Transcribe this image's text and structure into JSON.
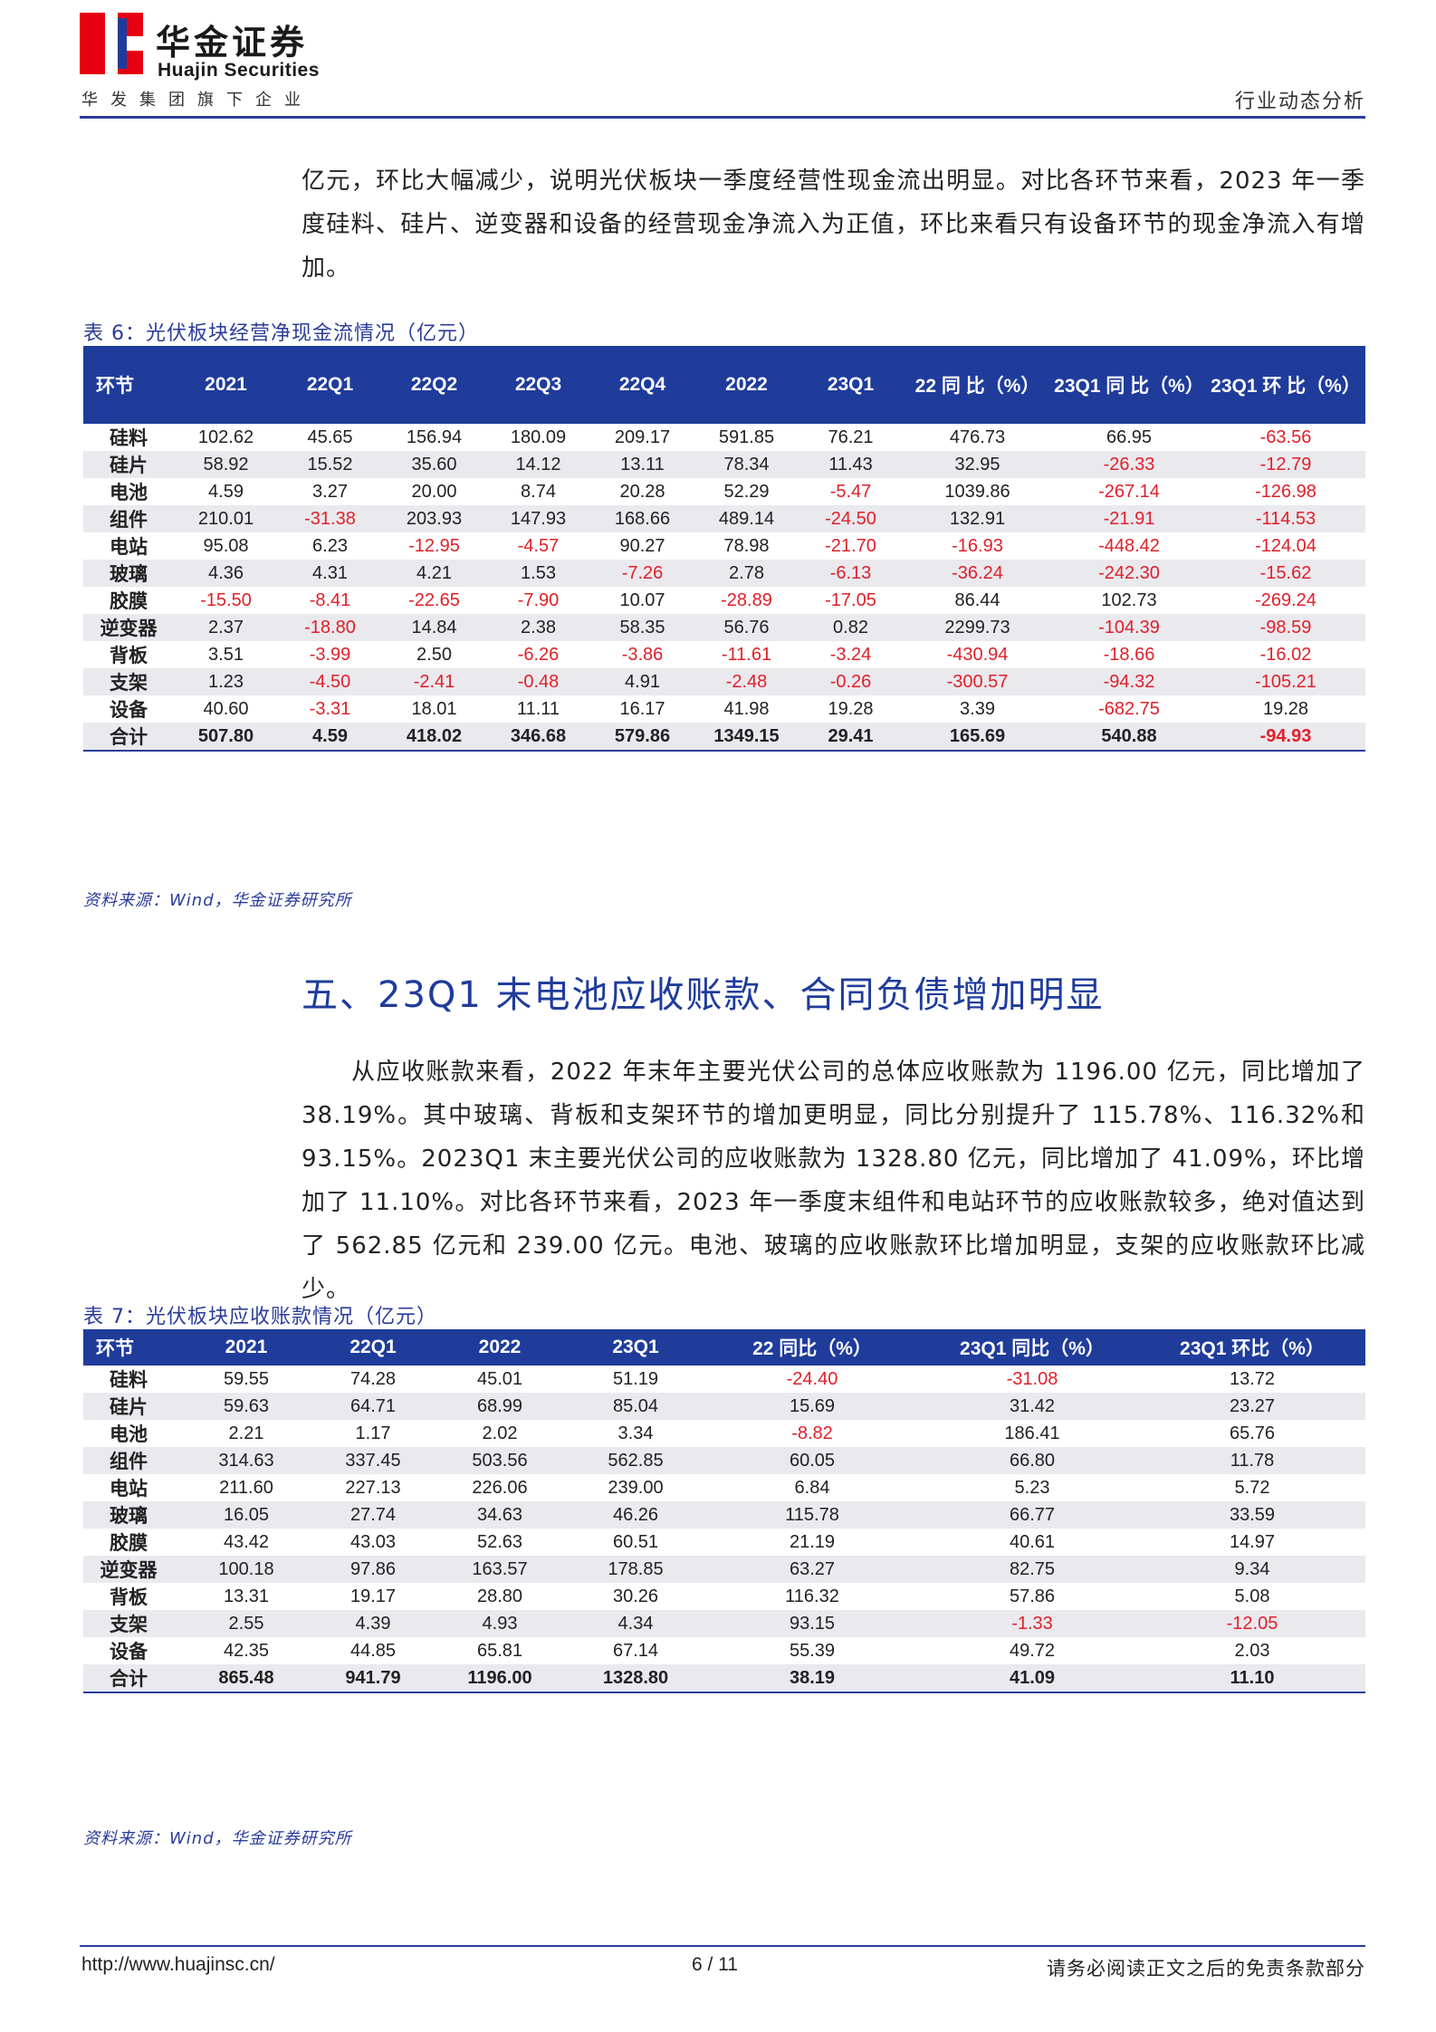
{
  "header": {
    "brand_cn": "华金证券",
    "brand_en": "Huajin Securities",
    "tagline": "华发集团旗下企业",
    "category": "行业动态分析",
    "brand_colors": {
      "red": "#e60012",
      "blue": "#1f3c9b"
    }
  },
  "intro_paragraph": "亿元，环比大幅减少，说明光伏板块一季度经营性现金流出明显。对比各环节来看，2023 年一季度硅料、硅片、逆变器和设备的经营现金净流入为正值，环比来看只有设备环节的现金净流入有增加。",
  "table6": {
    "title": "表 6：光伏板块经营净现金流情况（亿元）",
    "headers": [
      "环节",
      "2021",
      "22Q1",
      "22Q2",
      "22Q3",
      "22Q4",
      "2022",
      "23Q1",
      "22 同 比（%）",
      "23Q1 同 比（%）",
      "23Q1 环 比（%）"
    ],
    "rows": [
      [
        "硅料",
        "102.62",
        "45.65",
        "156.94",
        "180.09",
        "209.17",
        "591.85",
        "76.21",
        "476.73",
        "66.95",
        "-63.56"
      ],
      [
        "硅片",
        "58.92",
        "15.52",
        "35.60",
        "14.12",
        "13.11",
        "78.34",
        "11.43",
        "32.95",
        "-26.33",
        "-12.79"
      ],
      [
        "电池",
        "4.59",
        "3.27",
        "20.00",
        "8.74",
        "20.28",
        "52.29",
        "-5.47",
        "1039.86",
        "-267.14",
        "-126.98"
      ],
      [
        "组件",
        "210.01",
        "-31.38",
        "203.93",
        "147.93",
        "168.66",
        "489.14",
        "-24.50",
        "132.91",
        "-21.91",
        "-114.53"
      ],
      [
        "电站",
        "95.08",
        "6.23",
        "-12.95",
        "-4.57",
        "90.27",
        "78.98",
        "-21.70",
        "-16.93",
        "-448.42",
        "-124.04"
      ],
      [
        "玻璃",
        "4.36",
        "4.31",
        "4.21",
        "1.53",
        "-7.26",
        "2.78",
        "-6.13",
        "-36.24",
        "-242.30",
        "-15.62"
      ],
      [
        "胶膜",
        "-15.50",
        "-8.41",
        "-22.65",
        "-7.90",
        "10.07",
        "-28.89",
        "-17.05",
        "86.44",
        "102.73",
        "-269.24"
      ],
      [
        "逆变器",
        "2.37",
        "-18.80",
        "14.84",
        "2.38",
        "58.35",
        "56.76",
        "0.82",
        "2299.73",
        "-104.39",
        "-98.59"
      ],
      [
        "背板",
        "3.51",
        "-3.99",
        "2.50",
        "-6.26",
        "-3.86",
        "-11.61",
        "-3.24",
        "-430.94",
        "-18.66",
        "-16.02"
      ],
      [
        "支架",
        "1.23",
        "-4.50",
        "-2.41",
        "-0.48",
        "4.91",
        "-2.48",
        "-0.26",
        "-300.57",
        "-94.32",
        "-105.21"
      ],
      [
        "设备",
        "40.60",
        "-3.31",
        "18.01",
        "11.11",
        "16.17",
        "41.98",
        "19.28",
        "3.39",
        "-682.75",
        "19.28"
      ],
      [
        "合计",
        "507.80",
        "4.59",
        "418.02",
        "346.68",
        "579.86",
        "1349.15",
        "29.41",
        "165.69",
        "540.88",
        "-94.93"
      ]
    ],
    "source": "资料来源：Wind，华金证券研究所"
  },
  "section5": {
    "title": "五、23Q1 末电池应收账款、合同负债增加明显",
    "paragraph": "从应收账款来看，2022 年末年主要光伏公司的总体应收账款为 1196.00 亿元，同比增加了 38.19%。其中玻璃、背板和支架环节的增加更明显，同比分别提升了 115.78%、116.32%和 93.15%。2023Q1 末主要光伏公司的应收账款为 1328.80 亿元，同比增加了 41.09%，环比增加了 11.10%。对比各环节来看，2023 年一季度末组件和电站环节的应收账款较多，绝对值达到了 562.85 亿元和 239.00 亿元。电池、玻璃的应收账款环比增加明显，支架的应收账款环比减少。"
  },
  "table7": {
    "title": "表 7：光伏板块应收账款情况（亿元）",
    "headers": [
      "环节",
      "2021",
      "22Q1",
      "2022",
      "23Q1",
      "22 同比（%）",
      "23Q1 同比（%）",
      "23Q1 环比（%）"
    ],
    "rows": [
      [
        "硅料",
        "59.55",
        "74.28",
        "45.01",
        "51.19",
        "-24.40",
        "-31.08",
        "13.72"
      ],
      [
        "硅片",
        "59.63",
        "64.71",
        "68.99",
        "85.04",
        "15.69",
        "31.42",
        "23.27"
      ],
      [
        "电池",
        "2.21",
        "1.17",
        "2.02",
        "3.34",
        "-8.82",
        "186.41",
        "65.76"
      ],
      [
        "组件",
        "314.63",
        "337.45",
        "503.56",
        "562.85",
        "60.05",
        "66.80",
        "11.78"
      ],
      [
        "电站",
        "211.60",
        "227.13",
        "226.06",
        "239.00",
        "6.84",
        "5.23",
        "5.72"
      ],
      [
        "玻璃",
        "16.05",
        "27.74",
        "34.63",
        "46.26",
        "115.78",
        "66.77",
        "33.59"
      ],
      [
        "胶膜",
        "43.42",
        "43.03",
        "52.63",
        "60.51",
        "21.19",
        "40.61",
        "14.97"
      ],
      [
        "逆变器",
        "100.18",
        "97.86",
        "163.57",
        "178.85",
        "63.27",
        "82.75",
        "9.34"
      ],
      [
        "背板",
        "13.31",
        "19.17",
        "28.80",
        "30.26",
        "116.32",
        "57.86",
        "5.08"
      ],
      [
        "支架",
        "2.55",
        "4.39",
        "4.93",
        "4.34",
        "93.15",
        "-1.33",
        "-12.05"
      ],
      [
        "设备",
        "42.35",
        "44.85",
        "65.81",
        "67.14",
        "55.39",
        "49.72",
        "2.03"
      ],
      [
        "合计",
        "865.48",
        "941.79",
        "1196.00",
        "1328.80",
        "38.19",
        "41.09",
        "11.10"
      ]
    ],
    "source": "资料来源：Wind，华金证券研究所"
  },
  "footer": {
    "url": "http://www.huajinsc.cn/",
    "page": "6 / 11",
    "disclaimer": "请务必阅读正文之后的免责条款部分"
  }
}
